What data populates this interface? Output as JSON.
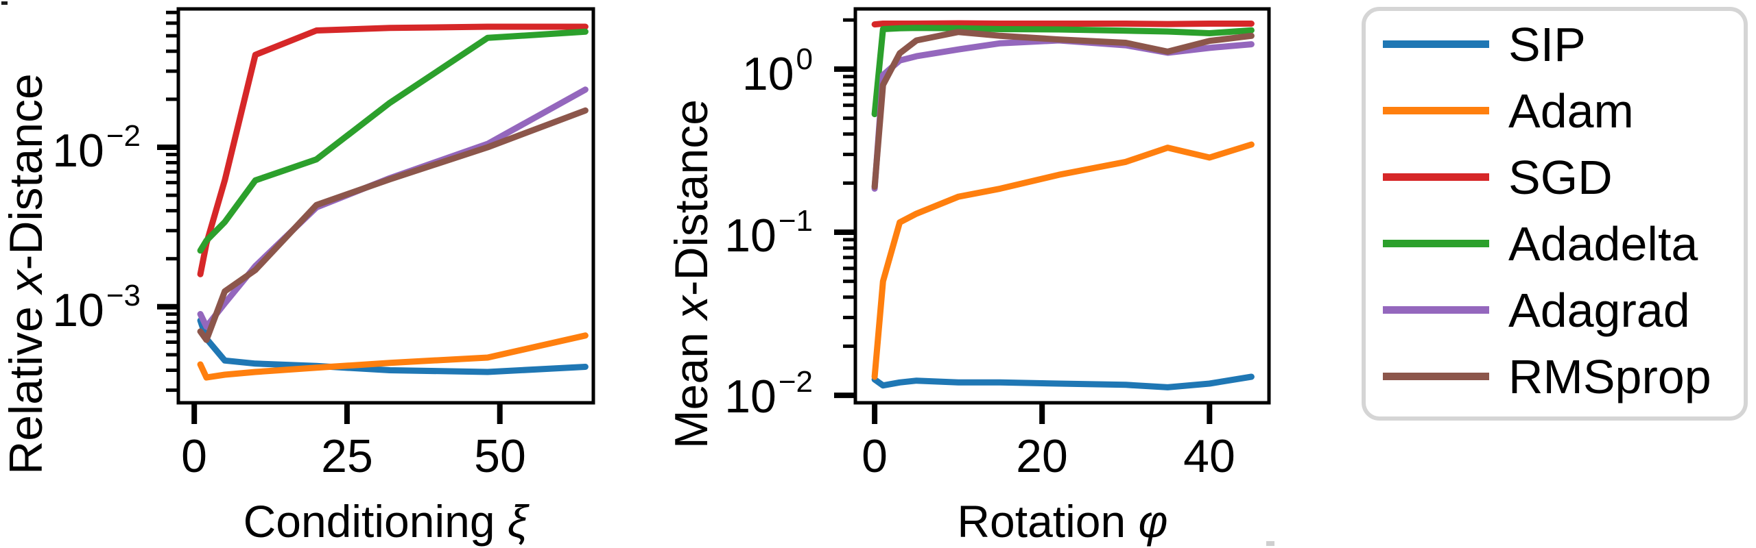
{
  "figure": {
    "background": "#ffffff",
    "text_color": "#000000"
  },
  "plots": {
    "left": {
      "ylabel": {
        "prefix": "Relative ",
        "var": "x",
        "suffix": "-Distance"
      },
      "xlabel": {
        "prefix": "Conditioning ",
        "var": "ξ"
      },
      "xtick_labels": [
        "0",
        "25",
        "50"
      ],
      "ytick_labels": [
        {
          "base": "10",
          "exp": "−2"
        },
        {
          "base": "10",
          "exp": "−3"
        }
      ]
    },
    "right": {
      "ylabel": {
        "prefix": "Mean ",
        "var": "x",
        "suffix": "-Distance"
      },
      "xlabel": {
        "prefix": "Rotation ",
        "var": "φ"
      },
      "xtick_labels": [
        "0",
        "20",
        "40"
      ],
      "ytick_labels": [
        {
          "base": "10",
          "exp": "0"
        },
        {
          "base": "10",
          "exp": "−1"
        },
        {
          "base": "10",
          "exp": "−2"
        }
      ]
    }
  },
  "legend": {
    "position": "outside-right",
    "border_color": "#d5d5d5",
    "items": [
      {
        "label": "SIP"
      },
      {
        "label": "Adam"
      },
      {
        "label": "SGD"
      },
      {
        "label": "Adadelta"
      },
      {
        "label": "Adagrad"
      },
      {
        "label": "RMSprop"
      }
    ]
  },
  "chart_data": [
    {
      "type": "line",
      "title": "",
      "xlabel": "Conditioning ξ",
      "ylabel": "Relative x-Distance",
      "xscale": "linear",
      "yscale": "log",
      "xlim": [
        -2.6,
        65.3
      ],
      "ylim": [
        0.00025,
        0.0737
      ],
      "xticks": [
        0,
        25,
        50
      ],
      "yticks": [
        0.01,
        0.001
      ],
      "grid": false,
      "x": [
        1,
        2,
        5,
        10,
        20,
        32,
        48,
        64
      ],
      "series": [
        {
          "name": "SIP",
          "color": "#1f77b4",
          "values": [
            0.00082,
            0.00063,
            0.00046,
            0.00044,
            0.000425,
            0.0004,
            0.00039,
            0.00042
          ]
        },
        {
          "name": "Adam",
          "color": "#ff7f0e",
          "values": [
            0.000435,
            0.00036,
            0.000375,
            0.00039,
            0.000415,
            0.000445,
            0.00048,
            0.00066
          ]
        },
        {
          "name": "SGD",
          "color": "#d62728",
          "values": [
            0.0016,
            0.0025,
            0.0062,
            0.038,
            0.054,
            0.056,
            0.057,
            0.057
          ]
        },
        {
          "name": "Adadelta",
          "color": "#2ca02c",
          "values": [
            0.00225,
            0.0026,
            0.0034,
            0.0062,
            0.0084,
            0.019,
            0.0485,
            0.053
          ]
        },
        {
          "name": "Adagrad",
          "color": "#9467bd",
          "values": [
            0.0009,
            0.00075,
            0.00105,
            0.0018,
            0.0042,
            0.0064,
            0.0105,
            0.023
          ]
        },
        {
          "name": "RMSprop",
          "color": "#8c564b",
          "values": [
            0.0007,
            0.00062,
            0.00125,
            0.0017,
            0.00435,
            0.0063,
            0.01,
            0.017
          ]
        }
      ]
    },
    {
      "type": "line",
      "title": "",
      "xlabel": "Rotation φ",
      "ylabel": "Mean x-Distance",
      "xscale": "linear",
      "yscale": "log",
      "xlim": [
        -2.3,
        47.1
      ],
      "ylim": [
        0.009,
        2.34
      ],
      "xticks": [
        0,
        20,
        40
      ],
      "yticks": [
        1,
        0.1,
        0.01
      ],
      "grid": false,
      "x": [
        0,
        1,
        3,
        5,
        10,
        15,
        22,
        30,
        35,
        40,
        45
      ],
      "series": [
        {
          "name": "SIP",
          "color": "#1f77b4",
          "values": [
            0.0125,
            0.0115,
            0.012,
            0.0123,
            0.012,
            0.012,
            0.0118,
            0.0116,
            0.0112,
            0.0118,
            0.013
          ]
        },
        {
          "name": "Adam",
          "color": "#ff7f0e",
          "values": [
            0.013,
            0.05,
            0.115,
            0.13,
            0.165,
            0.185,
            0.225,
            0.27,
            0.33,
            0.287,
            0.345
          ]
        },
        {
          "name": "SGD",
          "color": "#d62728",
          "values": [
            1.88,
            1.9,
            1.9,
            1.9,
            1.91,
            1.9,
            1.9,
            1.9,
            1.89,
            1.9,
            1.9
          ]
        },
        {
          "name": "Adadelta",
          "color": "#2ca02c",
          "values": [
            0.53,
            1.76,
            1.78,
            1.79,
            1.78,
            1.76,
            1.75,
            1.72,
            1.7,
            1.66,
            1.73
          ]
        },
        {
          "name": "Adagrad",
          "color": "#9467bd",
          "values": [
            0.185,
            0.92,
            1.13,
            1.2,
            1.32,
            1.44,
            1.5,
            1.4,
            1.26,
            1.35,
            1.42
          ]
        },
        {
          "name": "RMSprop",
          "color": "#8c564b",
          "values": [
            0.19,
            0.8,
            1.25,
            1.5,
            1.69,
            1.6,
            1.52,
            1.45,
            1.28,
            1.49,
            1.6
          ]
        }
      ]
    }
  ]
}
